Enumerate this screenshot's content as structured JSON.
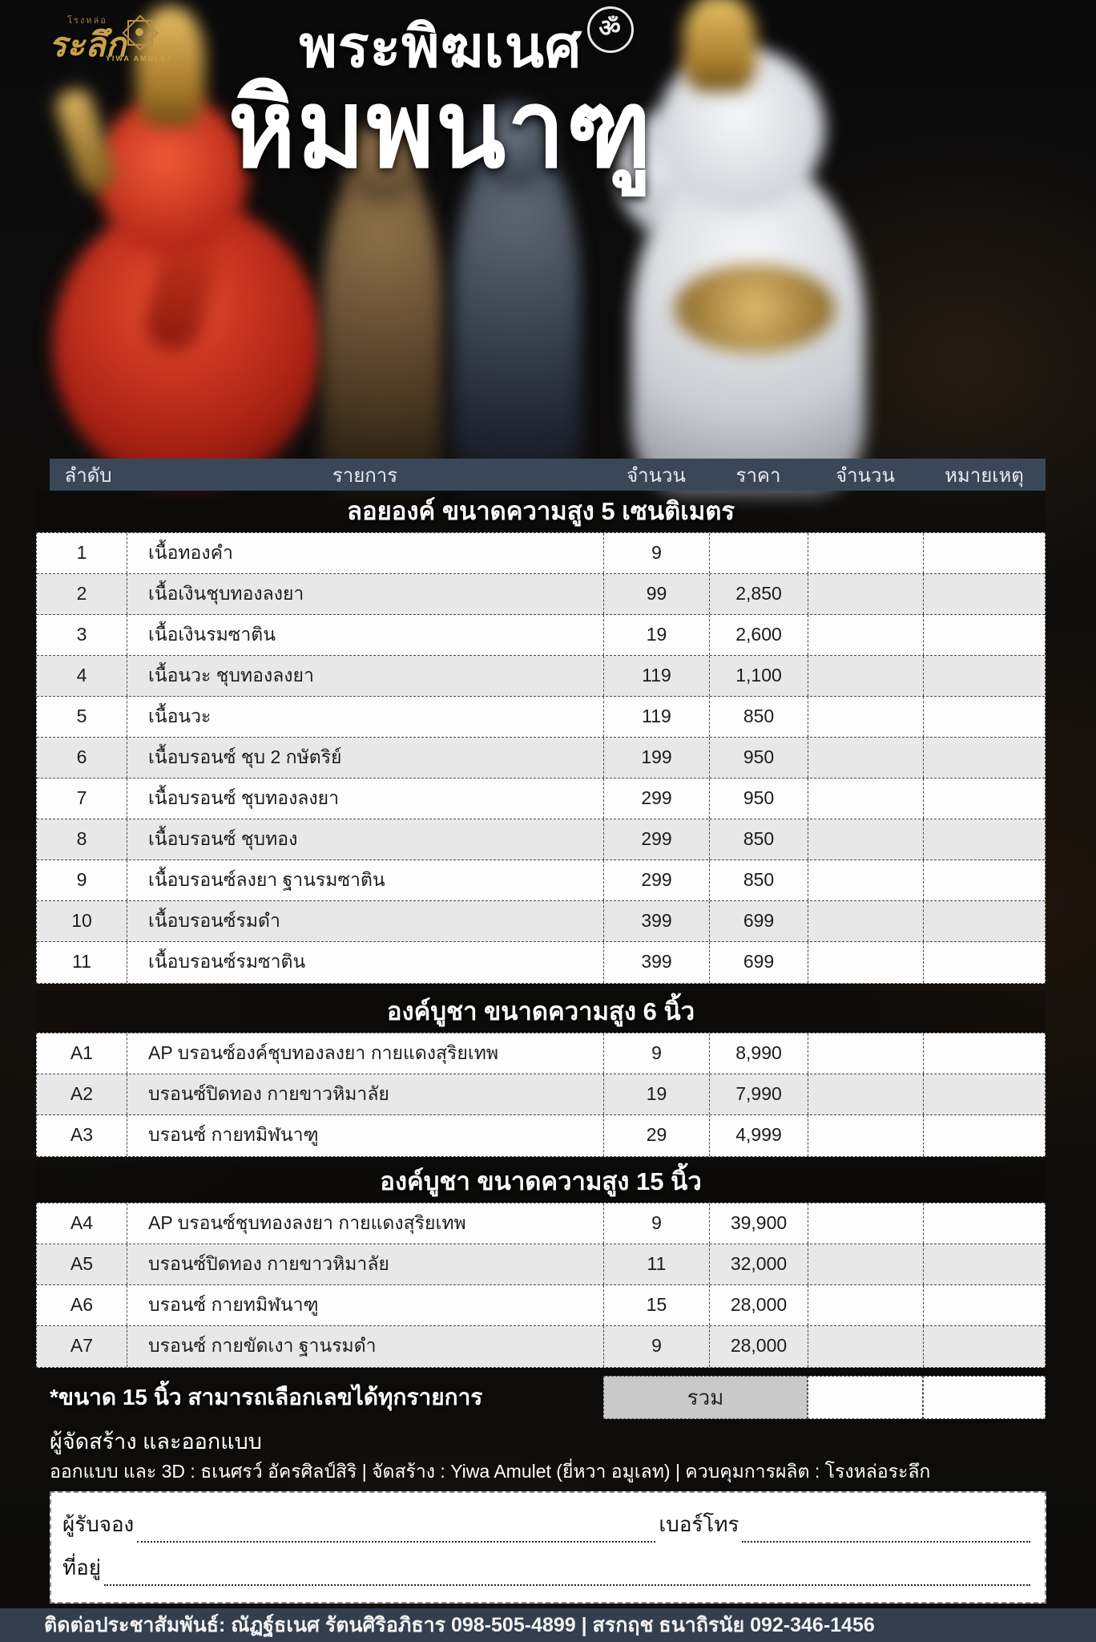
{
  "logos": {
    "raluek_top": "โรงหล่อ",
    "raluek_main": "ระลึก",
    "yiwa_amulet": "YIWA AMULET"
  },
  "hero": {
    "title_line1": "พระพิฆเนศ",
    "title_line2": "หิมพนาฑู",
    "om_symbol": "ॐ"
  },
  "table": {
    "headers": [
      "ลำดับ",
      "รายการ",
      "จำนวน",
      "ราคา",
      "จำนวน",
      "หมายเหตุ"
    ],
    "sections": [
      {
        "title": "ลอยองค์ ขนาดความสูง 5 เซนติเมตร",
        "rows": [
          {
            "no": "1",
            "item": "เนื้อทองคำ",
            "qty": "9",
            "price": ""
          },
          {
            "no": "2",
            "item": "เนื้อเงินชุบทองลงยา",
            "qty": "99",
            "price": "2,850"
          },
          {
            "no": "3",
            "item": "เนื้อเงินรมซาติน",
            "qty": "19",
            "price": "2,600"
          },
          {
            "no": "4",
            "item": "เนื้อนวะ ชุบทองลงยา",
            "qty": "119",
            "price": "1,100"
          },
          {
            "no": "5",
            "item": "เนื้อนวะ",
            "qty": "119",
            "price": "850"
          },
          {
            "no": "6",
            "item": "เนื้อบรอนซ์ ชุบ 2 กษัตริย์",
            "qty": "199",
            "price": "950"
          },
          {
            "no": "7",
            "item": "เนื้อบรอนซ์ ชุบทองลงยา",
            "qty": "299",
            "price": "950"
          },
          {
            "no": "8",
            "item": "เนื้อบรอนซ์ ชุบทอง",
            "qty": "299",
            "price": "850"
          },
          {
            "no": "9",
            "item": "เนื้อบรอนซ์ลงยา ฐานรมซาติน",
            "qty": "299",
            "price": "850"
          },
          {
            "no": "10",
            "item": "เนื้อบรอนซ์รมดำ",
            "qty": "399",
            "price": "699"
          },
          {
            "no": "11",
            "item": "เนื้อบรอนซ์รมซาติน",
            "qty": "399",
            "price": "699"
          }
        ]
      },
      {
        "title": "องค์บูชา ขนาดความสูง 6 นิ้ว",
        "rows": [
          {
            "no": "A1",
            "item": "AP บรอนซ์องค์ชุบทองลงยา กายแดงสุริยเทพ",
            "qty": "9",
            "price": "8,990"
          },
          {
            "no": "A2",
            "item": "บรอนซ์ปิดทอง กายขาวหิมาลัย",
            "qty": "19",
            "price": "7,990"
          },
          {
            "no": "A3",
            "item": "บรอนซ์ กายทมิฬนาฑู",
            "qty": "29",
            "price": "4,999"
          }
        ]
      },
      {
        "title": "องค์บูชา ขนาดความสูง 15 นิ้ว",
        "rows": [
          {
            "no": "A4",
            "item": "AP บรอนซ์ชุบทองลงยา กายแดงสุริยเทพ",
            "qty": "9",
            "price": "39,900"
          },
          {
            "no": "A5",
            "item": "บรอนซ์ปิดทอง กายขาวหิมาลัย",
            "qty": "11",
            "price": "32,000"
          },
          {
            "no": "A6",
            "item": "บรอนซ์ กายทมิฬนาฑู",
            "qty": "15",
            "price": "28,000"
          },
          {
            "no": "A7",
            "item": "บรอนซ์ กายขัดเงา ฐานรมดำ",
            "qty": "9",
            "price": "28,000"
          }
        ]
      }
    ],
    "footnote": "*ขนาด 15 นิ้ว สามารถเลือกเลขได้ทุกรายการ",
    "total_label": "รวม"
  },
  "credits": {
    "heading": "ผู้จัดสร้าง และออกแบบ",
    "line": "ออกแบบ และ 3D : ธเนศรว์ อัครศิลป์สิริ | จัดสร้าง : Yiwa Amulet (ยี่หวา อมูเลท) | ควบคุมการผลิต : โรงหล่อระลึก"
  },
  "form": {
    "orderer_label": "ผู้รับจอง",
    "phone_label": "เบอร์โทร",
    "address_label": "ที่อยู่"
  },
  "footer": {
    "contact": "ติดต่อประชาสัมพันธ์: ณัฏฐ์ธเนศ รัตนศิริอภิธาร 098-505-4899 | สรกฤช ธนาถิรนัย 092-346-1456"
  },
  "colors": {
    "header_band": "#3a4759",
    "footer_band": "#333e4e",
    "row_alt": "#e8e8e8",
    "total_cell": "#c9c9c9",
    "gold_accent": "#c9a14b",
    "statue_red": "#b02415",
    "statue_white": "#e9ebee",
    "statue_bronze": "#6a5134",
    "statue_dark": "#2b323e"
  }
}
